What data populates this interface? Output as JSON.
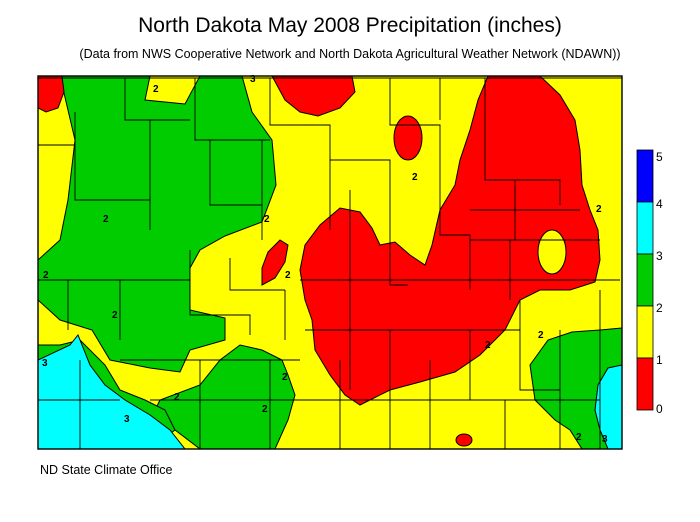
{
  "title": "North Dakota May 2008 Precipitation (inches)",
  "subtitle": "(Data from NWS Cooperative Network and North Dakota Agricultural Weather Network (NDAWN))",
  "legend": {
    "labels": [
      "5",
      "4",
      "3",
      "2",
      "1",
      "0"
    ],
    "bins": [
      {
        "range": "4-5",
        "color": "#0000ff"
      },
      {
        "range": "3-4",
        "color": "#00ffff"
      },
      {
        "range": "2-3",
        "color": "#00cc00"
      },
      {
        "range": "1-2",
        "color": "#ffff00"
      },
      {
        "range": "0-1",
        "color": "#ff0000"
      }
    ]
  },
  "contour_labels": [
    "2",
    "2",
    "2",
    "2",
    "2",
    "2",
    "2",
    "2",
    "3",
    "3",
    "3",
    "3",
    "2",
    "2",
    "2",
    "2",
    "2",
    "2"
  ],
  "credit": "ND State Climate Office"
}
